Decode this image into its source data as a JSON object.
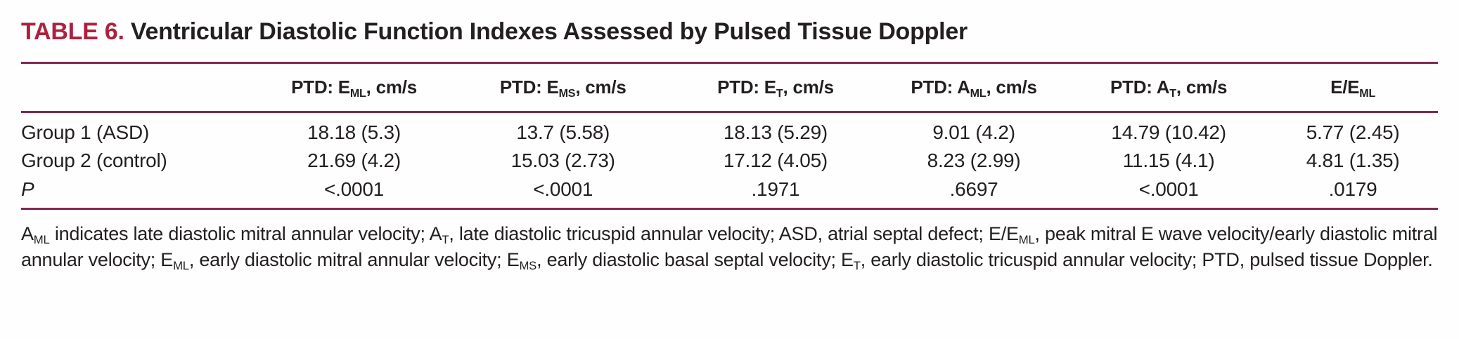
{
  "title": {
    "label": "TABLE 6.",
    "text": " Ventricular Diastolic Function Indexes Assessed by Pulsed Tissue Doppler"
  },
  "colors": {
    "accent": "#AD2140",
    "rule": "#7D2A54",
    "text": "#231F20",
    "background": "#FEFEFE"
  },
  "table": {
    "columns": [
      {
        "parts": []
      },
      {
        "parts": [
          {
            "t": "PTD: E"
          },
          {
            "t": "ML",
            "sub": true
          },
          {
            "t": ", cm/s"
          }
        ]
      },
      {
        "parts": [
          {
            "t": "PTD: E"
          },
          {
            "t": "MS",
            "sub": true
          },
          {
            "t": ", cm/s"
          }
        ]
      },
      {
        "parts": [
          {
            "t": "PTD: E"
          },
          {
            "t": "T",
            "sub": true
          },
          {
            "t": ", cm/s"
          }
        ]
      },
      {
        "parts": [
          {
            "t": "PTD: A"
          },
          {
            "t": "ML",
            "sub": true
          },
          {
            "t": ", cm/s"
          }
        ]
      },
      {
        "parts": [
          {
            "t": "PTD: A"
          },
          {
            "t": "T",
            "sub": true
          },
          {
            "t": ", cm/s"
          }
        ]
      },
      {
        "parts": [
          {
            "t": "E/E"
          },
          {
            "t": "ML",
            "sub": true
          }
        ]
      }
    ],
    "rows": [
      {
        "label": "Group 1 (ASD)",
        "values": [
          "18.18 (5.3)",
          "13.7 (5.58)",
          "18.13 (5.29)",
          "9.01 (4.2)",
          "14.79 (10.42)",
          "5.77 (2.45)"
        ]
      },
      {
        "label": "Group 2 (control)",
        "values": [
          "21.69 (4.2)",
          "15.03 (2.73)",
          "17.12 (4.05)",
          "8.23 (2.99)",
          "11.15 (4.1)",
          "4.81 (1.35)"
        ]
      },
      {
        "label": "P",
        "values": [
          "<.0001",
          "<.0001",
          ".1971",
          ".6697",
          "<.0001",
          ".0179"
        ]
      }
    ]
  },
  "footnote": {
    "parts": [
      {
        "t": "A"
      },
      {
        "t": "ML",
        "sub": true
      },
      {
        "t": " indicates late diastolic mitral annular velocity; A"
      },
      {
        "t": "T",
        "sub": true
      },
      {
        "t": ", late diastolic tricuspid annular velocity; ASD, atrial septal defect; E/E"
      },
      {
        "t": "ML",
        "sub": true
      },
      {
        "t": ", peak mitral E wave velocity/early diastolic mitral annular velocity; E"
      },
      {
        "t": "ML",
        "sub": true
      },
      {
        "t": ", early diastolic mitral annular velocity; E"
      },
      {
        "t": "MS",
        "sub": true
      },
      {
        "t": ", early diastolic basal septal velocity; E"
      },
      {
        "t": "T",
        "sub": true
      },
      {
        "t": ", early diastolic tricuspid annular velocity; PTD, pulsed tissue Doppler."
      }
    ]
  }
}
